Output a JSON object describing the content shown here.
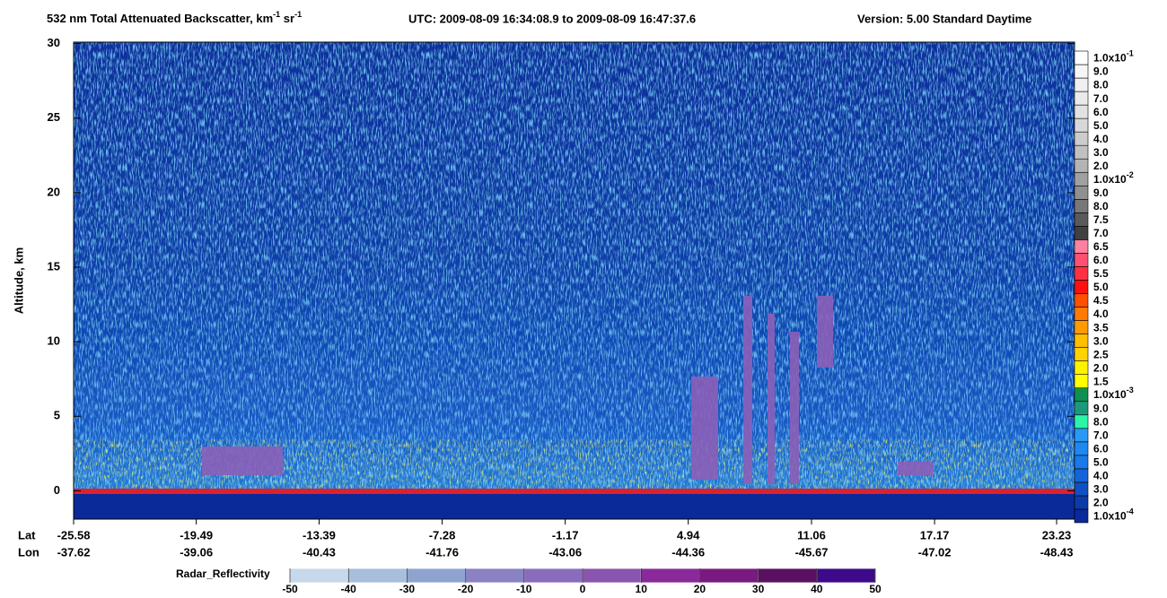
{
  "chart_data": {
    "type": "heatmap",
    "title": [
      "532 nm Total Attenuated Backscatter, km",
      "-1",
      " sr",
      "-1"
    ],
    "utc": "UTC:  2009-08-09 16:34:08.9  to  2009-08-09 16:47:37.6",
    "version": "Version: 5.00  Standard  Daytime",
    "ylabel": "Altitude, km",
    "ylim": [
      -1.9,
      30.1
    ],
    "yticks": [
      0,
      5,
      10,
      15,
      20,
      25,
      30
    ],
    "xlim": [
      -25.58,
      24.12
    ],
    "lat_label": "Lat",
    "lon_label": "Lon",
    "xticks": [
      -25.58,
      -19.49,
      -13.39,
      -7.28,
      -1.17,
      4.94,
      11.06,
      17.17,
      23.23
    ],
    "lon": [
      -37.62,
      -39.06,
      -40.43,
      -41.76,
      -43.06,
      -44.36,
      -45.67,
      -47.02,
      -48.43
    ],
    "colorbar": {
      "labels": [
        {
          "base": "1.0x10",
          "sup": "-4"
        },
        "2.0",
        "3.0",
        "4.0",
        "5.0",
        "6.0",
        "7.0",
        "8.0",
        "9.0",
        {
          "base": "1.0x10",
          "sup": "-3"
        },
        "1.5",
        "2.0",
        "2.5",
        "3.0",
        "3.5",
        "4.0",
        "4.5",
        "5.0",
        "5.5",
        "6.0",
        "6.5",
        "7.0",
        "7.5",
        "8.0",
        "9.0",
        {
          "base": "1.0x10",
          "sup": "-2"
        },
        "2.0",
        "3.0",
        "4.0",
        "5.0",
        "6.0",
        "7.0",
        "8.0",
        "9.0",
        {
          "base": "1.0x10",
          "sup": "-1"
        }
      ],
      "colors": [
        "#0a2a9a",
        "#0c3aa8",
        "#1050c0",
        "#1565d8",
        "#1a78e8",
        "#1e88f0",
        "#2a98f5",
        "#2af5a8",
        "#1a9a7a",
        "#109050",
        "#ffff00",
        "#fff200",
        "#ffd200",
        "#ffbe00",
        "#ff9a00",
        "#ff7a00",
        "#ff5000",
        "#ff1010",
        "#ff3040",
        "#ff5070",
        "#ff80a0",
        "#404040",
        "#5a5a5a",
        "#787878",
        "#909090",
        "#a0a0a0",
        "#b4b4b4",
        "#c0c0c0",
        "#cccccc",
        "#d8d8d8",
        "#e2e2e2",
        "#eaeaea",
        "#f0f0f0",
        "#f6f6f6",
        "#ffffff"
      ]
    },
    "radar": {
      "label": "Radar_Reflectivity",
      "ticks": [
        -50,
        -40,
        -30,
        -20,
        -10,
        0,
        10,
        20,
        30,
        40,
        50
      ],
      "colors": [
        "#c6d8ea",
        "#a8bedd",
        "#8ea4cf",
        "#8a82c4",
        "#8a6cbd",
        "#8a55b0",
        "#8a2a9a",
        "#7a1a80",
        "#5a1060",
        "#3c0a8a"
      ]
    }
  }
}
